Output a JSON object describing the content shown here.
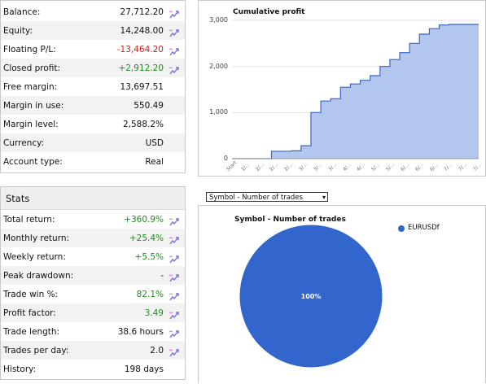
{
  "account": {
    "rows": [
      {
        "label": "Balance:",
        "value": "27,712.20",
        "tone": "neu",
        "icon": "chart-link-icon"
      },
      {
        "label": "Equity:",
        "value": "14,248.00",
        "tone": "neu",
        "icon": "chart-link-icon"
      },
      {
        "label": "Floating P/L:",
        "value": "-13,464.20",
        "tone": "neg",
        "icon": "chart-link-icon"
      },
      {
        "label": "Closed profit:",
        "value": "+2,912.20",
        "tone": "pos",
        "icon": "chart-link-icon"
      },
      {
        "label": "Free margin:",
        "value": "13,697.51",
        "tone": "neu",
        "icon": ""
      },
      {
        "label": "Margin in use:",
        "value": "550.49",
        "tone": "neu",
        "icon": ""
      },
      {
        "label": "Margin level:",
        "value": "2,588.2%",
        "tone": "neu",
        "icon": ""
      },
      {
        "label": "Currency:",
        "value": "USD",
        "tone": "neu",
        "icon": ""
      },
      {
        "label": "Account type:",
        "value": "Real",
        "tone": "neu",
        "icon": ""
      }
    ]
  },
  "stats": {
    "title": "Stats",
    "rows": [
      {
        "label": "Total return:",
        "value": "+360.9%",
        "tone": "pos",
        "icon": "chart-link-icon"
      },
      {
        "label": "Monthly return:",
        "value": "+25.4%",
        "tone": "pos",
        "icon": "chart-link-icon"
      },
      {
        "label": "Weekly return:",
        "value": "+5.5%",
        "tone": "pos",
        "icon": "chart-link-icon"
      },
      {
        "label": "Peak drawdown:",
        "value": "-",
        "tone": "neu",
        "icon": "chart-link-icon"
      },
      {
        "label": "Trade win %:",
        "value": "82.1%",
        "tone": "pos",
        "icon": "chart-link-icon"
      },
      {
        "label": "Profit factor:",
        "value": "3.49",
        "tone": "pos",
        "icon": "chart-link-icon"
      },
      {
        "label": "Trade length:",
        "value": "38.6 hours",
        "tone": "neu",
        "icon": "chart-link-icon"
      },
      {
        "label": "Trades per day:",
        "value": "2.0",
        "tone": "neu",
        "icon": "chart-link-icon"
      },
      {
        "label": "History:",
        "value": "198 days",
        "tone": "neu",
        "icon": ""
      }
    ]
  },
  "profit_chart": {
    "title": "Cumulative profit",
    "ticks_y": [
      "3,000",
      "2,000",
      "1,000",
      "0"
    ],
    "ticks_x": [
      "Start",
      "1/...",
      "2/...",
      "2/...",
      "2/...",
      "3/...",
      "3/...",
      "3/...",
      "4/...",
      "4/...",
      "5/...",
      "5/...",
      "6/...",
      "6/...",
      "6/...",
      "7/...",
      "7/...",
      "7/..."
    ]
  },
  "symbol_select": {
    "selected": "Symbol - Number of trades",
    "arrow": "▾"
  },
  "chart_data": [
    {
      "type": "area",
      "title": "Cumulative profit",
      "ylim": [
        0,
        3000
      ],
      "color": "#b3c7ee",
      "line_color": "#3a64c8",
      "x": [
        "Start",
        "1/...",
        "2/...",
        "2/...",
        "2/...",
        "3/...",
        "3/...",
        "3/...",
        "4/...",
        "4/...",
        "5/...",
        "5/...",
        "6/...",
        "6/...",
        "6/...",
        "7/...",
        "7/...",
        "7/..."
      ],
      "series": [
        {
          "values_by_step": [
            [
              0,
              0
            ],
            [
              1,
              0
            ],
            [
              2,
              0
            ],
            [
              3,
              0
            ],
            [
              4,
              160
            ],
            [
              5,
              160
            ],
            [
              6,
              170
            ],
            [
              7,
              280
            ],
            [
              8,
              1000
            ],
            [
              9,
              1250
            ],
            [
              10,
              1300
            ],
            [
              11,
              1550
            ],
            [
              12,
              1620
            ],
            [
              13,
              1700
            ],
            [
              14,
              1800
            ],
            [
              15,
              2000
            ],
            [
              16,
              2150
            ],
            [
              17,
              2300
            ],
            [
              18,
              2500
            ],
            [
              19,
              2700
            ],
            [
              20,
              2820
            ],
            [
              21,
              2900
            ],
            [
              22,
              2912
            ],
            [
              23,
              2912
            ],
            [
              24,
              2912
            ],
            [
              25,
              2912
            ]
          ]
        }
      ]
    },
    {
      "type": "pie",
      "title": "Symbol - Number of trades",
      "categories": [
        "EURUSDf"
      ],
      "values": [
        100
      ],
      "slice_labels": [
        "100%"
      ],
      "colors": [
        "#3366cc"
      ]
    }
  ]
}
